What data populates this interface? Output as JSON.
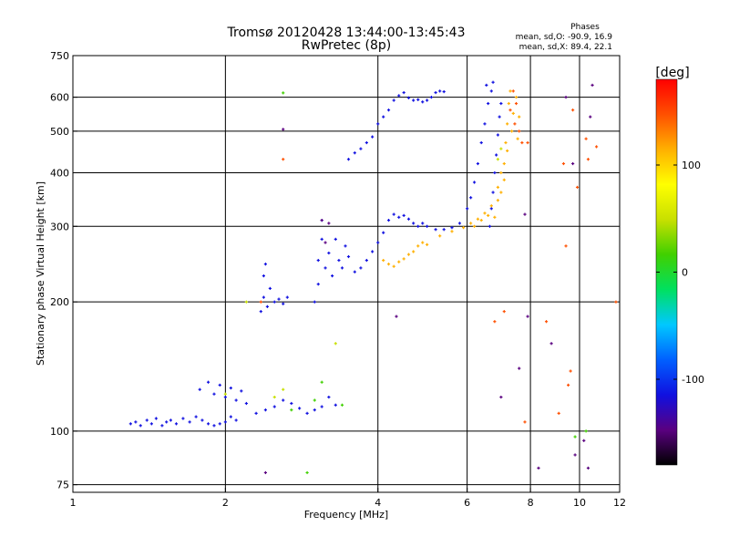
{
  "title": {
    "line1": "Tromsø 20120428 13:44:00-13:45:43",
    "line2": "RwPretec (8p)"
  },
  "stats": {
    "heading": "Phases",
    "line1": "mean, sd,O: -90.9, 16.9",
    "line2": "mean, sd,X: 89.4, 22.1"
  },
  "colorbar": {
    "unit_label": "[deg]",
    "tick_labels": [
      "100",
      "0",
      "-100"
    ],
    "tick_values": [
      100,
      0,
      -100
    ],
    "range": [
      -180,
      180
    ],
    "colors": [
      "#000000",
      "#5a0080",
      "#1010e0",
      "#0060ff",
      "#00c8ff",
      "#00e060",
      "#40d000",
      "#c8e000",
      "#ffff00",
      "#ffb000",
      "#ff5000",
      "#ff0000"
    ]
  },
  "chart_data": {
    "type": "scatter",
    "title": "Tromsø 20120428 13:44:00-13:45:43",
    "subtitle": "RwPretec (8p)",
    "xlabel": "Frequency [MHz]",
    "ylabel": "Stationary phase Virtual Height [km]",
    "x_scale": "log",
    "y_scale": "log",
    "xlim": [
      1,
      12
    ],
    "ylim": [
      72,
      750
    ],
    "x_ticks": [
      1,
      2,
      4,
      6,
      8,
      10,
      12
    ],
    "x_tick_labels": [
      "1",
      "2",
      "4",
      "6",
      "8",
      "10",
      "12"
    ],
    "y_ticks": [
      75,
      100,
      200,
      300,
      400,
      500,
      600,
      750
    ],
    "y_tick_labels": [
      "75",
      "100",
      "200",
      "300",
      "400",
      "500",
      "600",
      "750"
    ],
    "grid": true,
    "color_scale": "phase [deg]",
    "series": [
      {
        "phase": -100,
        "points": [
          [
            1.3,
            104
          ],
          [
            1.33,
            105
          ],
          [
            1.36,
            103
          ],
          [
            1.4,
            106
          ],
          [
            1.43,
            104
          ],
          [
            1.46,
            107
          ],
          [
            1.5,
            103
          ],
          [
            1.53,
            105
          ],
          [
            1.56,
            106
          ],
          [
            1.6,
            104
          ],
          [
            1.65,
            107
          ],
          [
            1.7,
            105
          ],
          [
            1.75,
            108
          ],
          [
            1.8,
            106
          ],
          [
            1.85,
            104
          ],
          [
            1.9,
            103
          ],
          [
            1.95,
            104
          ],
          [
            2.0,
            105
          ],
          [
            2.05,
            108
          ],
          [
            2.1,
            106
          ],
          [
            1.78,
            125
          ],
          [
            1.85,
            130
          ],
          [
            1.9,
            122
          ],
          [
            1.95,
            128
          ],
          [
            2.0,
            120
          ],
          [
            2.05,
            126
          ],
          [
            2.1,
            118
          ],
          [
            2.15,
            124
          ],
          [
            2.2,
            116
          ],
          [
            2.3,
            110
          ],
          [
            2.4,
            112
          ],
          [
            2.5,
            114
          ],
          [
            2.6,
            118
          ],
          [
            2.7,
            116
          ],
          [
            2.8,
            113
          ],
          [
            2.9,
            110
          ],
          [
            3.0,
            112
          ],
          [
            3.1,
            114
          ],
          [
            3.2,
            120
          ],
          [
            3.3,
            115
          ],
          [
            2.35,
            190
          ],
          [
            2.38,
            205
          ],
          [
            2.42,
            195
          ],
          [
            2.5,
            200
          ],
          [
            2.55,
            203
          ],
          [
            2.6,
            198
          ],
          [
            2.65,
            205
          ],
          [
            2.4,
            245
          ],
          [
            2.38,
            230
          ],
          [
            2.45,
            215
          ],
          [
            3.0,
            200
          ],
          [
            3.05,
            220
          ],
          [
            3.05,
            250
          ],
          [
            3.1,
            280
          ],
          [
            3.1,
            310
          ],
          [
            3.15,
            240
          ],
          [
            3.2,
            260
          ],
          [
            3.25,
            230
          ],
          [
            3.3,
            280
          ],
          [
            3.35,
            250
          ],
          [
            3.4,
            240
          ],
          [
            3.45,
            270
          ],
          [
            3.5,
            255
          ],
          [
            3.6,
            235
          ],
          [
            3.7,
            240
          ],
          [
            3.8,
            250
          ],
          [
            3.9,
            262
          ],
          [
            4.0,
            275
          ],
          [
            4.1,
            290
          ],
          [
            4.2,
            310
          ],
          [
            4.3,
            320
          ],
          [
            4.4,
            315
          ],
          [
            4.5,
            318
          ],
          [
            4.6,
            312
          ],
          [
            4.7,
            305
          ],
          [
            4.8,
            300
          ],
          [
            4.9,
            305
          ],
          [
            5.0,
            300
          ],
          [
            5.2,
            295
          ],
          [
            5.4,
            295
          ],
          [
            5.6,
            298
          ],
          [
            5.8,
            305
          ],
          [
            6.0,
            330
          ],
          [
            6.1,
            350
          ],
          [
            6.2,
            380
          ],
          [
            6.3,
            420
          ],
          [
            6.4,
            470
          ],
          [
            6.5,
            520
          ],
          [
            6.6,
            580
          ],
          [
            6.7,
            620
          ],
          [
            3.5,
            430
          ],
          [
            3.6,
            445
          ],
          [
            3.7,
            455
          ],
          [
            3.8,
            470
          ],
          [
            3.9,
            485
          ],
          [
            4.0,
            520
          ],
          [
            4.1,
            540
          ],
          [
            4.2,
            560
          ],
          [
            4.3,
            590
          ],
          [
            4.4,
            605
          ],
          [
            4.5,
            615
          ],
          [
            4.6,
            598
          ],
          [
            4.7,
            590
          ],
          [
            4.8,
            592
          ],
          [
            4.9,
            585
          ],
          [
            5.0,
            590
          ],
          [
            5.1,
            600
          ],
          [
            5.2,
            615
          ],
          [
            5.3,
            620
          ],
          [
            5.4,
            618
          ],
          [
            6.65,
            300
          ],
          [
            6.7,
            330
          ],
          [
            6.75,
            360
          ],
          [
            6.8,
            400
          ],
          [
            6.85,
            440
          ],
          [
            6.9,
            490
          ],
          [
            6.95,
            540
          ],
          [
            7.0,
            580
          ],
          [
            6.55,
            640
          ],
          [
            6.75,
            650
          ]
        ]
      },
      {
        "phase": 100,
        "points": [
          [
            4.1,
            250
          ],
          [
            4.2,
            245
          ],
          [
            4.3,
            242
          ],
          [
            4.4,
            248
          ],
          [
            4.5,
            252
          ],
          [
            4.6,
            258
          ],
          [
            4.7,
            262
          ],
          [
            4.8,
            270
          ],
          [
            4.9,
            275
          ],
          [
            5.0,
            272
          ],
          [
            5.3,
            285
          ],
          [
            5.6,
            292
          ],
          [
            5.9,
            298
          ],
          [
            6.1,
            305
          ],
          [
            6.3,
            312
          ],
          [
            6.5,
            322
          ],
          [
            6.7,
            335
          ],
          [
            6.9,
            345
          ],
          [
            7.0,
            360
          ],
          [
            7.1,
            385
          ],
          [
            7.1,
            420
          ],
          [
            7.15,
            470
          ],
          [
            7.2,
            520
          ],
          [
            7.25,
            580
          ],
          [
            7.3,
            620
          ],
          [
            7.0,
            400
          ],
          [
            6.9,
            370
          ],
          [
            7.2,
            450
          ],
          [
            7.35,
            500
          ],
          [
            7.4,
            550
          ],
          [
            7.5,
            600
          ],
          [
            7.6,
            540
          ],
          [
            7.55,
            480
          ],
          [
            6.8,
            315
          ],
          [
            6.6,
            318
          ],
          [
            6.4,
            310
          ],
          [
            6.2,
            300
          ]
        ]
      },
      {
        "phase": 160,
        "points": [
          [
            2.35,
            200
          ],
          [
            2.6,
            430
          ],
          [
            7.4,
            620
          ],
          [
            7.5,
            580
          ],
          [
            7.45,
            520
          ],
          [
            7.6,
            500
          ],
          [
            7.7,
            470
          ],
          [
            7.3,
            560
          ]
        ]
      },
      {
        "phase": 40,
        "points": [
          [
            2.5,
            120
          ],
          [
            2.6,
            125
          ],
          [
            3.3,
            160
          ],
          [
            2.2,
            200
          ],
          [
            2.0,
            122
          ],
          [
            6.9,
            430
          ],
          [
            7.0,
            455
          ]
        ]
      },
      {
        "phase": 0,
        "points": [
          [
            2.6,
            614
          ],
          [
            2.7,
            112
          ],
          [
            3.0,
            118
          ],
          [
            3.1,
            130
          ],
          [
            3.4,
            115
          ],
          [
            9.8,
            97
          ],
          [
            10.3,
            100
          ],
          [
            2.9,
            80
          ]
        ]
      },
      {
        "phase": -140,
        "points": [
          [
            2.6,
            505
          ],
          [
            3.1,
            310
          ],
          [
            3.2,
            305
          ],
          [
            3.15,
            275
          ],
          [
            10.6,
            640
          ],
          [
            10.5,
            540
          ],
          [
            9.7,
            420
          ],
          [
            4.35,
            185
          ],
          [
            7.0,
            120
          ],
          [
            8.8,
            160
          ],
          [
            9.8,
            88
          ],
          [
            10.4,
            82
          ],
          [
            8.3,
            82
          ],
          [
            7.6,
            140
          ],
          [
            10.2,
            95
          ],
          [
            7.8,
            320
          ],
          [
            9.4,
            600
          ],
          [
            7.9,
            185
          ],
          [
            2.4,
            80
          ]
        ]
      },
      {
        "phase": 140,
        "points": [
          [
            9.7,
            560
          ],
          [
            10.3,
            480
          ],
          [
            9.3,
            420
          ],
          [
            9.9,
            370
          ],
          [
            9.4,
            270
          ],
          [
            8.6,
            180
          ],
          [
            9.5,
            128
          ],
          [
            9.6,
            138
          ],
          [
            7.8,
            105
          ],
          [
            9.1,
            110
          ],
          [
            7.1,
            190
          ],
          [
            6.8,
            180
          ],
          [
            11.8,
            200
          ],
          [
            10.8,
            460
          ],
          [
            10.4,
            430
          ],
          [
            7.9,
            470
          ]
        ]
      }
    ]
  }
}
